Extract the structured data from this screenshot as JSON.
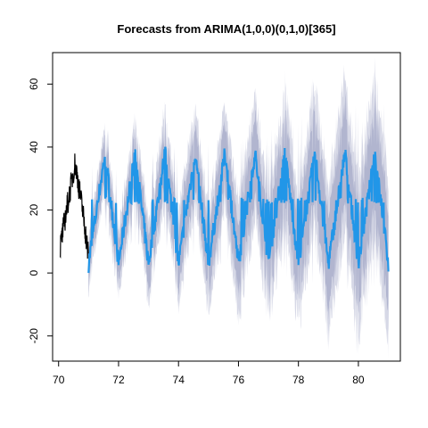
{
  "chart_data": {
    "type": "line",
    "title": "Forecasts from ARIMA(1,0,0)(0,1,0)[365]",
    "xlabel": "",
    "ylabel": "",
    "xlim": [
      69.8,
      81.4
    ],
    "ylim": [
      -28,
      70
    ],
    "x_ticks": [
      70,
      72,
      74,
      76,
      78,
      80
    ],
    "y_ticks": [
      -20,
      0,
      20,
      40,
      60
    ],
    "grid": false,
    "legend": "none",
    "colors": {
      "history": "#000000",
      "forecast": "#2196e8",
      "interval_80": "#b1b5cf",
      "interval_95": "#d6d8e6"
    },
    "history": {
      "x_start": 70.05,
      "x_end": 71.0,
      "min": 5,
      "max": 38,
      "description_points": [
        [
          70.05,
          8
        ],
        [
          70.3,
          22
        ],
        [
          70.55,
          35
        ],
        [
          70.8,
          20
        ],
        [
          71.0,
          5
        ]
      ]
    },
    "forecast": {
      "x_start": 71.0,
      "x_end": 81.0,
      "period_years": 1,
      "peaks": [
        [
          71.55,
          38
        ],
        [
          72.55,
          38
        ],
        [
          73.55,
          38
        ],
        [
          74.55,
          38
        ],
        [
          75.55,
          38
        ],
        [
          76.55,
          38
        ],
        [
          77.55,
          38
        ],
        [
          78.55,
          38
        ],
        [
          79.55,
          38
        ],
        [
          80.55,
          38
        ]
      ],
      "troughs": [
        [
          72.0,
          3
        ],
        [
          73.0,
          3
        ],
        [
          74.0,
          3
        ],
        [
          75.0,
          3
        ],
        [
          76.0,
          3
        ],
        [
          77.0,
          3
        ],
        [
          78.0,
          3
        ],
        [
          79.0,
          3
        ],
        [
          80.0,
          3
        ],
        [
          81.0,
          3
        ]
      ],
      "plateau_level": 23
    },
    "interval_80_halfwidth_start": 6,
    "interval_80_halfwidth_end": 17,
    "interval_95_halfwidth_start": 9,
    "interval_95_halfwidth_end": 27
  }
}
